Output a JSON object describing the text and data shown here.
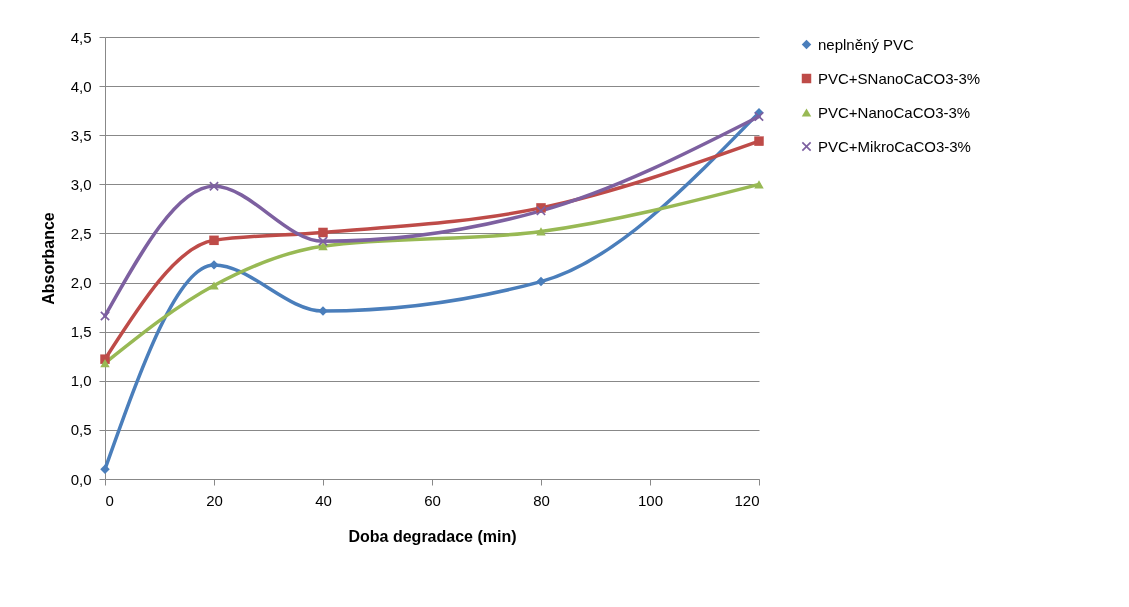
{
  "chart_data": {
    "type": "line",
    "xlabel": "Doba degradace (min)",
    "ylabel": "Absorbance",
    "x": [
      0,
      20,
      40,
      80,
      120
    ],
    "series": [
      {
        "name": "neplněný PVC",
        "color": "#4a7ebb",
        "marker": "diamond",
        "values": [
          0.1,
          2.18,
          1.71,
          2.01,
          3.73
        ]
      },
      {
        "name": "PVC+SNanoCaCO3-3%",
        "color": "#be4b48",
        "marker": "square",
        "values": [
          1.22,
          2.43,
          2.51,
          2.76,
          3.44
        ]
      },
      {
        "name": "PVC+NanoCaCO3-3%",
        "color": "#98b954",
        "marker": "triangle",
        "values": [
          1.18,
          1.97,
          2.37,
          2.52,
          3.0
        ]
      },
      {
        "name": "PVC+MikroCaCO3-3%",
        "color": "#7d60a0",
        "marker": "cross",
        "values": [
          1.66,
          2.98,
          2.42,
          2.73,
          3.69
        ]
      }
    ],
    "xlim": [
      0,
      120
    ],
    "xticks": [
      0,
      20,
      40,
      60,
      80,
      100,
      120
    ],
    "ylim": [
      0,
      4.5
    ],
    "yticks": [
      {
        "value": 0,
        "label": "0,0"
      },
      {
        "value": 0.5,
        "label": "0,5"
      },
      {
        "value": 1,
        "label": "1,0"
      },
      {
        "value": 1.5,
        "label": "1,5"
      },
      {
        "value": 2,
        "label": "2,0"
      },
      {
        "value": 2.5,
        "label": "2,5"
      },
      {
        "value": 3,
        "label": "3,0"
      },
      {
        "value": 3.5,
        "label": "3,5"
      },
      {
        "value": 4,
        "label": "4,0"
      },
      {
        "value": 4.5,
        "label": "4,5"
      }
    ],
    "grid": "y",
    "legend": "right",
    "line_style": "solid"
  }
}
